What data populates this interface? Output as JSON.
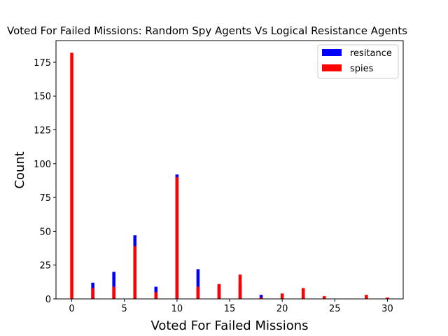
{
  "chart_data": {
    "type": "bar",
    "title": "Voted For Failed Missions: Random Spy Agents Vs Logical Resistance Agents",
    "xlabel": "Voted For Failed Missions",
    "ylabel": "Count",
    "xlim": [
      -1.5,
      31.5
    ],
    "ylim": [
      0,
      191
    ],
    "xticks": [
      0,
      5,
      10,
      15,
      20,
      25,
      30
    ],
    "yticks": [
      0,
      25,
      50,
      75,
      100,
      125,
      150,
      175
    ],
    "legend_position": "top-right",
    "grid": false,
    "series": [
      {
        "name": "resitance",
        "color": "#0000ff",
        "points": [
          {
            "x": 2,
            "y": 12
          },
          {
            "x": 4,
            "y": 20
          },
          {
            "x": 6,
            "y": 47
          },
          {
            "x": 8,
            "y": 9
          },
          {
            "x": 10,
            "y": 92
          },
          {
            "x": 12,
            "y": 22
          },
          {
            "x": 14,
            "y": 10
          },
          {
            "x": 16,
            "y": 11
          },
          {
            "x": 18,
            "y": 3
          },
          {
            "x": 22,
            "y": 1
          },
          {
            "x": 24,
            "y": 1
          }
        ]
      },
      {
        "name": "spies",
        "color": "#ff0000",
        "points": [
          {
            "x": 0,
            "y": 182
          },
          {
            "x": 2,
            "y": 8
          },
          {
            "x": 4,
            "y": 9
          },
          {
            "x": 6,
            "y": 39
          },
          {
            "x": 8,
            "y": 5
          },
          {
            "x": 10,
            "y": 90
          },
          {
            "x": 12,
            "y": 9
          },
          {
            "x": 14,
            "y": 11
          },
          {
            "x": 16,
            "y": 18
          },
          {
            "x": 18,
            "y": 1
          },
          {
            "x": 20,
            "y": 4
          },
          {
            "x": 22,
            "y": 8
          },
          {
            "x": 24,
            "y": 2
          },
          {
            "x": 28,
            "y": 3
          },
          {
            "x": 30,
            "y": 1
          }
        ]
      }
    ]
  }
}
